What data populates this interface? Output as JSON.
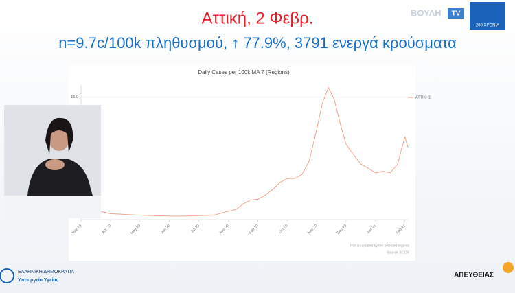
{
  "header": {
    "title": "Αττική, 2 Φεβρ.",
    "subtitle": "n=9.7c/100k πληθυσμού, ↑ 77.9%, 3791 ενεργά κρούσματα",
    "channel": "ΒΟΥΛΗ",
    "channel_tag": "TV",
    "anniversary": "200 ΧΡΟΝΙΑ"
  },
  "chart_data": {
    "type": "line",
    "title": "Daily Cases per 100k MA 7 (Regions)",
    "x": [
      0,
      0.25,
      0.5,
      0.75,
      1,
      1.5,
      2,
      2.5,
      3,
      3.5,
      4,
      4.5,
      5,
      5.25,
      5.5,
      5.75,
      6,
      6.25,
      6.5,
      6.75,
      7,
      7.25,
      7.5,
      7.75,
      8,
      8.2,
      8.4,
      8.6,
      8.8,
      9,
      9.25,
      9.5,
      9.75,
      10,
      10.25,
      10.5,
      10.75,
      10.9,
      11,
      11.1
    ],
    "series": [
      {
        "name": "ΑΤΤΙΚΗΣ",
        "color": "#f2a48f",
        "values": [
          1.4,
          1.2,
          0.9,
          0.6,
          0.4,
          0.3,
          0.2,
          0.15,
          0.1,
          0.1,
          0.15,
          0.2,
          0.7,
          0.9,
          1.6,
          2.1,
          2.2,
          2.7,
          3.4,
          4.3,
          4.8,
          4.8,
          5.3,
          7.0,
          10.9,
          14.3,
          16.2,
          14.7,
          11.7,
          9.1,
          7.8,
          6.6,
          6.1,
          5.5,
          5.7,
          5.5,
          6.6,
          8.7,
          10,
          8.7
        ]
      }
    ],
    "xlim": [
      0,
      11.1
    ],
    "xticks": [
      {
        "value": 0,
        "label": "Mar 20"
      },
      {
        "value": 1,
        "label": "Apr 20"
      },
      {
        "value": 2,
        "label": "May 20"
      },
      {
        "value": 3,
        "label": "Jun 20"
      },
      {
        "value": 4,
        "label": "Jul 20"
      },
      {
        "value": 5,
        "label": "Aug 20"
      },
      {
        "value": 6,
        "label": "Sep 20"
      },
      {
        "value": 7,
        "label": "Oct 20"
      },
      {
        "value": 8,
        "label": "Nov 20"
      },
      {
        "value": 9,
        "label": "Dec 20"
      },
      {
        "value": 10,
        "label": "Jan 21"
      },
      {
        "value": 11,
        "label": "Feb 21"
      }
    ],
    "ylim": [
      0,
      16.5
    ],
    "yticks": [
      {
        "value": 15,
        "label": "15.0"
      }
    ],
    "grid": true,
    "legend": "top-right",
    "notes": [
      "Plot is updated by the selected regions",
      "Source: EODY"
    ]
  },
  "footer": {
    "ministry_line1": "ΕΛΛΗΝΙΚΗ ΔΗΜΟΚΡΑΤΙΑ",
    "ministry_line2": "Υπουργείο Υγείας",
    "live": "ΑΠΕΥΘΕΙΑΣ"
  }
}
